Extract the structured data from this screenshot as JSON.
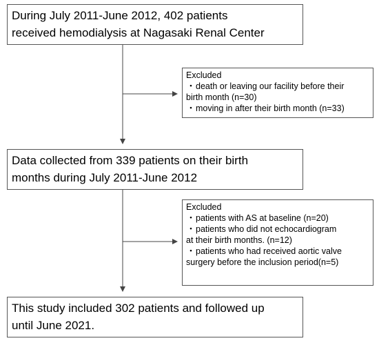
{
  "boxes": {
    "start": {
      "lines": [
        "During July 2011-June 2012, 402 patients",
        "received hemodialysis at Nagasaki Renal Center"
      ]
    },
    "exclusion1": {
      "heading": "Excluded",
      "items": [
        {
          "bullet": "・",
          "lines": [
            "death or leaving our facility before their",
            "birth month (n=30)"
          ]
        },
        {
          "bullet": "・",
          "lines": [
            "moving in after their birth month (n=33)"
          ]
        }
      ]
    },
    "collected": {
      "lines": [
        "Data collected from 339 patients on their birth",
        "months during July 2011-June 2012"
      ]
    },
    "exclusion2": {
      "heading": "Excluded",
      "items": [
        {
          "bullet": "・",
          "lines": [
            "patients with AS at baseline (n=20)"
          ]
        },
        {
          "bullet": "・",
          "lines": [
            "patients who did not echocardiogram",
            "at their birth months. (n=12)"
          ]
        },
        {
          "bullet": "・",
          "lines": [
            "patients who had received aortic valve",
            "surgery before the inclusion period(n=5)"
          ]
        }
      ]
    },
    "included": {
      "lines": [
        "This study included 302 patients and followed up",
        "until June 2021."
      ]
    }
  }
}
